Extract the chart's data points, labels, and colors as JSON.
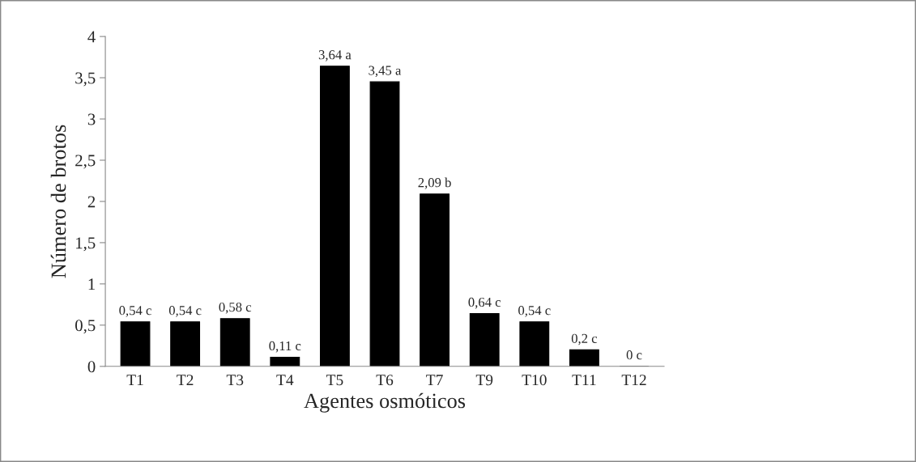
{
  "chart_data": {
    "type": "bar",
    "xlabel": "Agentes osmóticos",
    "ylabel": "Número de brotos",
    "categories": [
      "T1",
      "T2",
      "T3",
      "T4",
      "T5",
      "T6",
      "T7",
      "T9",
      "T10",
      "T11",
      "T12"
    ],
    "values": [
      0.54,
      0.54,
      0.58,
      0.11,
      3.64,
      3.45,
      2.09,
      0.64,
      0.54,
      0.2,
      0
    ],
    "value_labels": [
      "0,54 c",
      "0,54 c",
      "0,58 c",
      "0,11 c",
      "3,64 a",
      "3,45 a",
      "2,09 b",
      "0,64 c",
      "0,54 c",
      "0,2 c",
      "0 c"
    ],
    "color": "#000000",
    "ylim": [
      0,
      4
    ],
    "yticks": [
      {
        "value": 0,
        "label": "0"
      },
      {
        "value": 0.5,
        "label": "0,5"
      },
      {
        "value": 1,
        "label": "1"
      },
      {
        "value": 1.5,
        "label": "1,5"
      },
      {
        "value": 2,
        "label": "2"
      },
      {
        "value": 2.5,
        "label": "2,5"
      },
      {
        "value": 3,
        "label": "3"
      },
      {
        "value": 3.5,
        "label": "3,5"
      },
      {
        "value": 4,
        "label": "4"
      }
    ],
    "grid": false,
    "legend": false
  }
}
